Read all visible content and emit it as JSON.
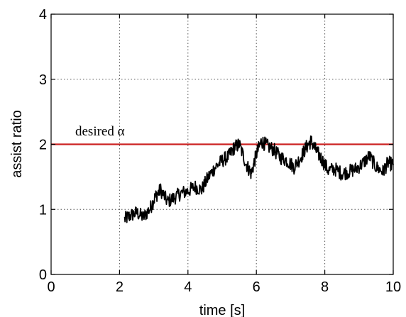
{
  "chart_data": {
    "type": "line",
    "title": "",
    "xlabel": "time [s]",
    "ylabel": "assist ratio",
    "xlim": [
      0,
      10
    ],
    "ylim": [
      0,
      4
    ],
    "xticks": [
      "0",
      "2",
      "4",
      "6",
      "8",
      "10"
    ],
    "yticks": [
      "0",
      "1",
      "2",
      "3",
      "4"
    ],
    "grid": true,
    "reference_line": {
      "y": 2,
      "color": "#cc2222",
      "label": "desired α"
    },
    "series": [
      {
        "color": "#000000",
        "x": [
          2.15,
          2.3,
          2.5,
          2.7,
          2.9,
          3.05,
          3.2,
          3.4,
          3.6,
          3.8,
          4.0,
          4.2,
          4.4,
          4.6,
          4.8,
          5.0,
          5.2,
          5.35,
          5.5,
          5.7,
          5.85,
          6.0,
          6.15,
          6.3,
          6.5,
          6.7,
          6.9,
          7.1,
          7.3,
          7.45,
          7.6,
          7.75,
          7.9,
          8.1,
          8.3,
          8.5,
          8.7,
          8.9,
          9.1,
          9.3,
          9.5,
          9.7,
          9.85,
          10.0
        ],
        "y": [
          0.85,
          0.9,
          0.95,
          0.88,
          1.02,
          1.2,
          1.3,
          1.12,
          1.18,
          1.25,
          1.28,
          1.35,
          1.3,
          1.5,
          1.65,
          1.75,
          1.82,
          1.95,
          2.0,
          1.7,
          1.55,
          1.85,
          2.05,
          1.98,
          1.92,
          1.8,
          1.75,
          1.65,
          1.8,
          1.95,
          2.05,
          1.9,
          1.78,
          1.6,
          1.62,
          1.55,
          1.58,
          1.62,
          1.7,
          1.82,
          1.65,
          1.58,
          1.72,
          1.68
        ]
      }
    ]
  }
}
